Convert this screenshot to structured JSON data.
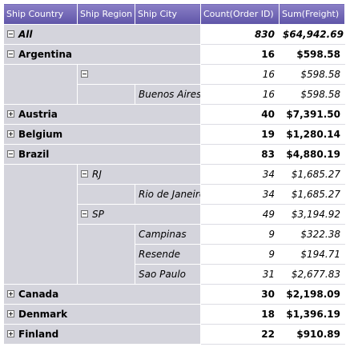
{
  "headers": [
    "Ship Country",
    "Ship Region",
    "Ship City",
    "Count(Order ID)",
    "Sum(Freight)"
  ],
  "all": {
    "label": "All",
    "count": "830",
    "sum": "$64,942.69"
  },
  "argentina": {
    "label": "Argentina",
    "count": "16",
    "sum": "$598.58",
    "region_count": "16",
    "region_sum": "$598.58",
    "city": {
      "label": "Buenos Aires",
      "count": "16",
      "sum": "$598.58"
    }
  },
  "austria": {
    "label": "Austria",
    "count": "40",
    "sum": "$7,391.50"
  },
  "belgium": {
    "label": "Belgium",
    "count": "19",
    "sum": "$1,280.14"
  },
  "brazil": {
    "label": "Brazil",
    "count": "83",
    "sum": "$4,880.19",
    "rj": {
      "label": "RJ",
      "count": "34",
      "sum": "$1,685.27",
      "city": {
        "label": "Rio de Janeiro",
        "count": "34",
        "sum": "$1,685.27"
      }
    },
    "sp": {
      "label": "SP",
      "count": "49",
      "sum": "$3,194.92",
      "cities": [
        {
          "label": "Campinas",
          "count": "9",
          "sum": "$322.38"
        },
        {
          "label": "Resende",
          "count": "9",
          "sum": "$194.71"
        },
        {
          "label": "Sao Paulo",
          "count": "31",
          "sum": "$2,677.83"
        }
      ]
    }
  },
  "canada": {
    "label": "Canada",
    "count": "30",
    "sum": "$2,198.09"
  },
  "denmark": {
    "label": "Denmark",
    "count": "18",
    "sum": "$1,396.19"
  },
  "finland": {
    "label": "Finland",
    "count": "22",
    "sum": "$910.89"
  }
}
